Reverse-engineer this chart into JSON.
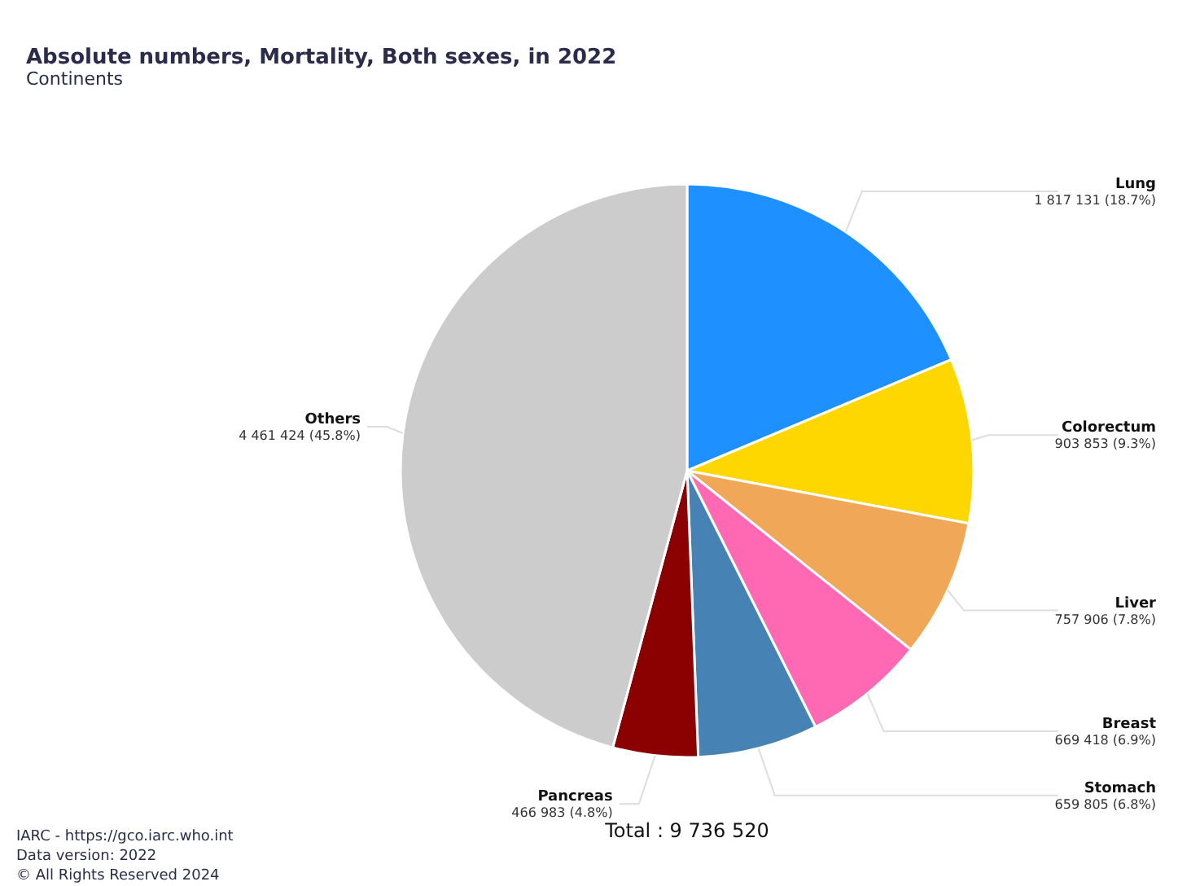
{
  "chart_data": {
    "type": "pie",
    "title": "Absolute numbers, Mortality, Both sexes, in 2022",
    "subtitle": "Continents",
    "categories": [
      "Lung",
      "Colorectum",
      "Liver",
      "Breast",
      "Stomach",
      "Pancreas",
      "Others"
    ],
    "values": [
      1817131,
      903853,
      757906,
      669418,
      659805,
      466983,
      4461424
    ],
    "colors": [
      "#1e90ff",
      "#ffd700",
      "#f0a858",
      "#ff69b4",
      "#4682b4",
      "#8b0000",
      "#cccccc"
    ],
    "value_labels": [
      "1 817 131 (18.7%)",
      "903 853 (9.3%)",
      "757 906 (7.8%)",
      "669 418 (6.9%)",
      "659 805 (6.8%)",
      "466 983 (4.8%)",
      "4 461 424 (45.8%)"
    ],
    "annotations": [
      "Total : 9 736 520",
      "IARC - https://gco.iarc.who.int",
      "Data version: 2022",
      "© All Rights Reserved 2024"
    ]
  }
}
